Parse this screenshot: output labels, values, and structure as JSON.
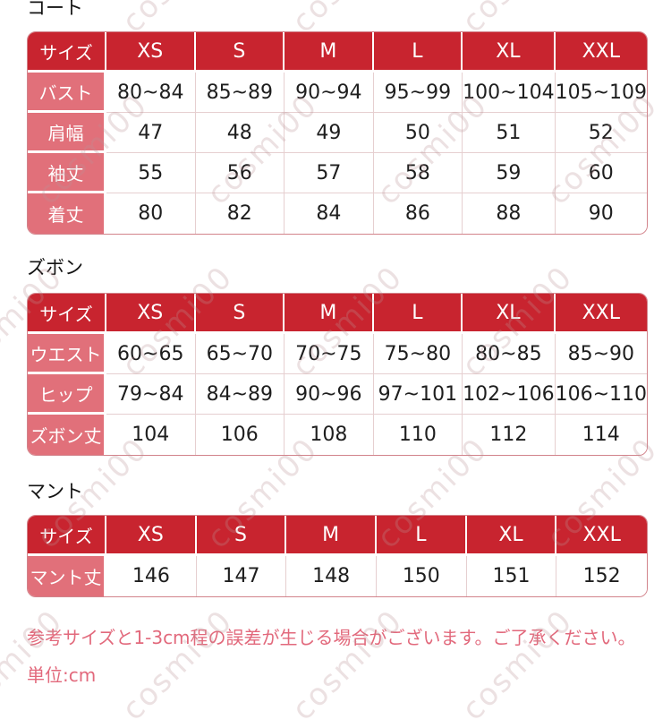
{
  "colors": {
    "header_red": "#c8242f",
    "row_label_pink": "#e1707a",
    "note_pink": "#e2697c",
    "grid_line": "#e6cfd0"
  },
  "watermark": {
    "text": "cosmi00"
  },
  "sections": [
    {
      "title": "コート",
      "table": {
        "header": [
          "サイズ",
          "XS",
          "S",
          "M",
          "L",
          "XL",
          "XXL"
        ],
        "rows": [
          {
            "label": "バスト",
            "values": [
              "80~84",
              "85~89",
              "90~94",
              "95~99",
              "100~104",
              "105~109"
            ]
          },
          {
            "label": "肩幅",
            "values": [
              "47",
              "48",
              "49",
              "50",
              "51",
              "52"
            ]
          },
          {
            "label": "袖丈",
            "values": [
              "55",
              "56",
              "57",
              "58",
              "59",
              "60"
            ]
          },
          {
            "label": "着丈",
            "values": [
              "80",
              "82",
              "84",
              "86",
              "88",
              "90"
            ]
          }
        ]
      }
    },
    {
      "title": "ズボン",
      "table": {
        "header": [
          "サイズ",
          "XS",
          "S",
          "M",
          "L",
          "XL",
          "XXL"
        ],
        "rows": [
          {
            "label": "ウエスト",
            "values": [
              "60~65",
              "65~70",
              "70~75",
              "75~80",
              "80~85",
              "85~90"
            ]
          },
          {
            "label": "ヒップ",
            "values": [
              "79~84",
              "84~89",
              "90~96",
              "97~101",
              "102~106",
              "106~110"
            ]
          },
          {
            "label": "ズボン丈",
            "values": [
              "104",
              "106",
              "108",
              "110",
              "112",
              "114"
            ]
          }
        ]
      }
    },
    {
      "title": "マント",
      "table": {
        "header": [
          "サイズ",
          "XS",
          "S",
          "M",
          "L",
          "XL",
          "XXL"
        ],
        "rows": [
          {
            "label": "マント丈",
            "values": [
              "146",
              "147",
              "148",
              "150",
              "151",
              "152"
            ]
          }
        ]
      }
    }
  ],
  "notes": {
    "disclaimer": "参考サイズと1-3cm程の誤差が生じる場合がございます。ご了承ください。",
    "unit": "単位:cm"
  }
}
